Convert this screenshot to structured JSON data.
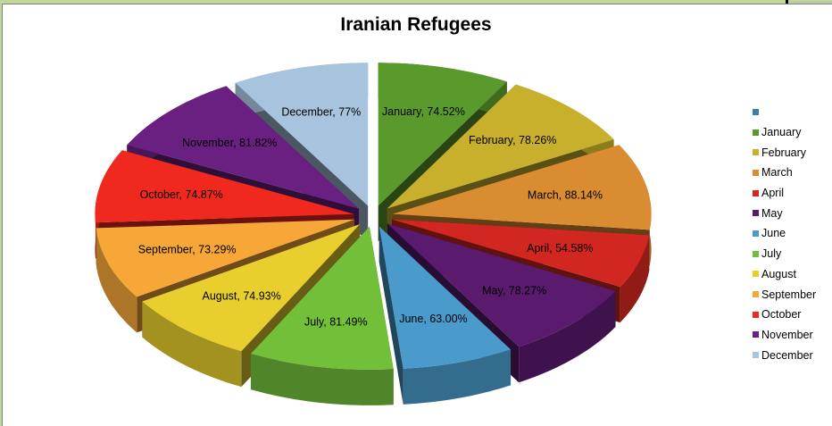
{
  "chart_data": {
    "type": "pie",
    "variant": "3d-exploded",
    "title": "Iranian Refugees",
    "categories": [
      "January",
      "February",
      "March",
      "April",
      "May",
      "June",
      "July",
      "August",
      "September",
      "October",
      "November",
      "December"
    ],
    "values": [
      74.52,
      78.26,
      88.14,
      54.58,
      78.27,
      63.0,
      81.49,
      74.93,
      73.29,
      74.87,
      81.82,
      77
    ],
    "data_labels": [
      "January, 74.52%",
      "February, 78.26%",
      "March, 88.14%",
      "April, 54.58%",
      "May, 78.27%",
      "June, 63.00%",
      "July, 81.49%",
      "August, 74.93%",
      "September, 73.29%",
      "October, 74.87%",
      "November, 81.82%",
      "December, 77%"
    ],
    "colors": [
      "#5a9a2c",
      "#c9b02c",
      "#d98c30",
      "#d22720",
      "#5a1a6e",
      "#4a9acb",
      "#72bf3a",
      "#e9cf2e",
      "#f6a738",
      "#f0281e",
      "#6a2081",
      "#a7c3de"
    ],
    "legend": {
      "position": "right",
      "entries": [
        "",
        "January",
        "February",
        "March",
        "April",
        "May",
        "June",
        "July",
        "August",
        "September",
        "October",
        "November",
        "December"
      ],
      "entry_colors": [
        "#3d7ea6",
        "#5a9a2c",
        "#c9b02c",
        "#d98c30",
        "#d22720",
        "#5a1a6e",
        "#4a9acb",
        "#72bf3a",
        "#e9cf2e",
        "#f6a738",
        "#f0281e",
        "#6a2081",
        "#a7c3de"
      ]
    }
  }
}
